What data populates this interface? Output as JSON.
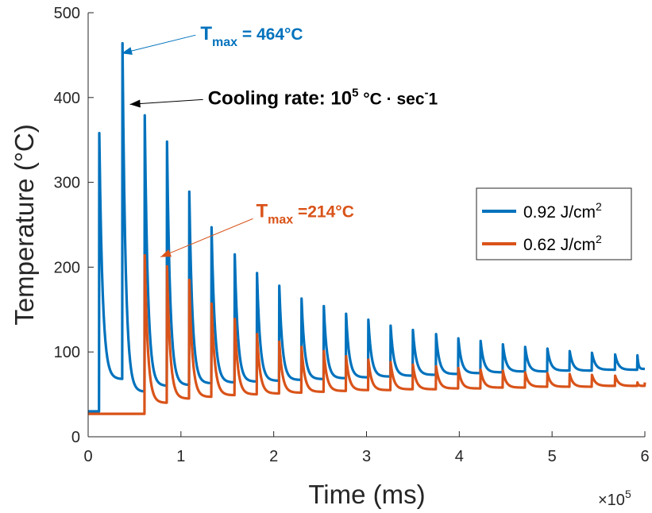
{
  "chart_data": {
    "type": "line",
    "title": "",
    "xlabel": "Time (ms)",
    "ylabel": "Temperature (°C)",
    "x_multiplier": {
      "base": "×10",
      "exp": "5"
    },
    "xlim": [
      0,
      6
    ],
    "ylim": [
      0,
      500
    ],
    "x_ticks": [
      0,
      1,
      2,
      3,
      4,
      5,
      6
    ],
    "y_ticks": [
      0,
      100,
      200,
      300,
      400,
      500
    ],
    "grid": false,
    "legend_position": "right",
    "series": [
      {
        "name": "0.92 J/cm",
        "name_sup": "2",
        "color": "#0072BD",
        "pulse_times": [
          0.12,
          0.37,
          0.61,
          0.85,
          1.09,
          1.33,
          1.58,
          1.82,
          2.06,
          2.3,
          2.54,
          2.78,
          3.02,
          3.26,
          3.5,
          3.75,
          3.99,
          4.23,
          4.47,
          4.71,
          4.95,
          5.19,
          5.43,
          5.68,
          5.92
        ],
        "peaks": [
          358,
          464,
          379,
          348,
          289,
          247,
          215,
          193,
          178,
          163,
          154,
          145,
          138,
          131,
          126,
          121,
          116,
          113,
          109,
          106,
          104,
          101,
          99,
          97,
          96
        ],
        "troughs": [
          68,
          53,
          60,
          61,
          63,
          64,
          65,
          66,
          67,
          68,
          69,
          70,
          71,
          72,
          73,
          74,
          75,
          76,
          77,
          77,
          78,
          78,
          79,
          79,
          80
        ],
        "start_value": 30,
        "end_value": 80
      },
      {
        "name": "0.62 J/cm",
        "name_sup": "2",
        "color": "#D95319",
        "pulse_times": [
          0.61,
          0.85,
          1.09,
          1.33,
          1.58,
          1.82,
          2.06,
          2.3,
          2.54,
          2.78,
          3.02,
          3.26,
          3.5,
          3.75,
          3.99,
          4.23,
          4.47,
          4.71,
          4.95,
          5.19,
          5.43,
          5.68,
          5.92
        ],
        "peaks": [
          214,
          201,
          185,
          157,
          139,
          121,
          112,
          106,
          101,
          95,
          91,
          88,
          85,
          83,
          81,
          79,
          78,
          76,
          75,
          74,
          73,
          72,
          64
        ],
        "troughs": [
          40,
          45,
          47,
          49,
          50,
          51,
          52,
          53,
          54,
          55,
          55,
          56,
          56,
          57,
          57,
          58,
          58,
          59,
          59,
          59,
          60,
          60,
          60
        ],
        "start_value": 27,
        "end_value": 64
      }
    ],
    "annotations": [
      {
        "id": "tmax-blue",
        "prefix": "T",
        "sub": "max",
        "suffix": " = 464°C",
        "color": "#0072BD",
        "point": [
          0.36,
          452
        ],
        "text_at": [
          1.21,
          468
        ]
      },
      {
        "id": "cooling",
        "prefix": "Cooling rate: 10",
        "sup1": "5",
        "middle": " °C · sec",
        "sup2": "-",
        "suffix": "1",
        "color": "#000000",
        "point": [
          0.45,
          392
        ],
        "text_at": [
          1.29,
          392
        ]
      },
      {
        "id": "tmax-orange",
        "prefix": "T",
        "sub": "max",
        "suffix": " =214°C",
        "color": "#D95319",
        "point": [
          0.78,
          212
        ],
        "text_at": [
          1.81,
          259
        ]
      }
    ]
  }
}
